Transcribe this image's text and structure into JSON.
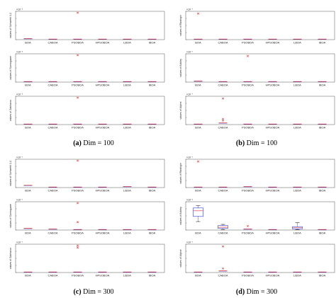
{
  "captions": [
    {
      "letter": "(a)",
      "text": "Dim = 100"
    },
    {
      "letter": "(b)",
      "text": "Dim = 100"
    },
    {
      "letter": "(c)",
      "text": "Dim = 300"
    },
    {
      "letter": "(d)",
      "text": "Dim = 300"
    }
  ],
  "chart_data": [
    {
      "type": "box",
      "panel": "a",
      "categories": [
        "BOA",
        "CABOA",
        "PSOBOA",
        "HPSOBOA",
        "LBOA",
        "IBOA"
      ],
      "subplots": [
        {
          "ylabel": "values of Schwefel 1.2",
          "multiplier": "×10⁻⁸",
          "boxes": [
            {
              "median": 0.04
            },
            {
              "median": 0.02
            },
            {
              "median": 0.02
            },
            {
              "median": 0.02
            },
            {
              "median": 0.02
            },
            {
              "median": 0.02
            }
          ],
          "outliers": [
            [],
            [],
            [
              0.95
            ],
            [],
            [],
            []
          ]
        },
        {
          "ylabel": "values of Sumsquare",
          "multiplier": "×10⁻⁸",
          "boxes": [
            {
              "median": 0.02
            },
            {
              "median": 0.02
            },
            {
              "median": 0.02
            },
            {
              "median": 0.02
            },
            {
              "median": 0.02
            },
            {
              "median": 0.02
            }
          ],
          "outliers": [
            [],
            [],
            [
              0.95
            ],
            [],
            [],
            []
          ]
        },
        {
          "ylabel": "values of Zakharov",
          "multiplier": "×10⁻⁸",
          "boxes": [
            {
              "median": 0.02
            },
            {
              "median": 0.02
            },
            {
              "median": 0.02
            },
            {
              "median": 0.02
            },
            {
              "median": 0.02
            },
            {
              "median": 0.02
            }
          ],
          "outliers": [
            [],
            [],
            [
              0.95
            ],
            [],
            [],
            []
          ]
        }
      ]
    },
    {
      "type": "box",
      "panel": "b",
      "categories": [
        "BOA",
        "CABOA",
        "PSOBOA",
        "HPSOBOA",
        "LBOA",
        "IBOA"
      ],
      "subplots": [
        {
          "ylabel": "values of Rastrigin",
          "multiplier": "×10⁻⁷",
          "boxes": [
            {
              "median": 0.02
            },
            {
              "median": 0.02
            },
            {
              "median": 0.02
            },
            {
              "median": 0.02
            },
            {
              "median": 0.02
            },
            {
              "median": 0.02
            }
          ],
          "outliers": [
            [
              0.92
            ],
            [],
            [],
            [],
            [],
            []
          ]
        },
        {
          "ylabel": "values of Ackley",
          "multiplier": "×10⁻⁷",
          "boxes": [
            {
              "median": 0.04
            },
            {
              "median": 0.02
            },
            {
              "median": 0.02
            },
            {
              "median": 0.02
            },
            {
              "median": 0.02
            },
            {
              "median": 0.02
            }
          ],
          "outliers": [
            [],
            [],
            [
              0.92
            ],
            [],
            [],
            []
          ]
        },
        {
          "ylabel": "values of Alpine",
          "multiplier": "×10⁻⁷",
          "boxes": [
            {
              "median": 0.02
            },
            {
              "median": 0.06
            },
            {
              "median": 0.02
            },
            {
              "median": 0.02
            },
            {
              "median": 0.02
            },
            {
              "median": 0.02
            }
          ],
          "outliers": [
            [],
            [
              0.92,
              0.2,
              0.14
            ],
            [],
            [],
            [],
            []
          ]
        }
      ]
    },
    {
      "type": "box",
      "panel": "c",
      "categories": [
        "BOA",
        "CABOA",
        "PSOBOA",
        "HPSOBOA",
        "LBOA",
        "IBOA"
      ],
      "subplots": [
        {
          "ylabel": "values of Schwefel 1.2",
          "multiplier": "×10⁻⁷",
          "boxes": [
            {
              "median": 0.08
            },
            {
              "median": 0.02
            },
            {
              "median": 0.02
            },
            {
              "median": 0.02
            },
            {
              "median": 0.04
            },
            {
              "median": 0.02
            }
          ],
          "outliers": [
            [],
            [],
            [
              0.95
            ],
            [],
            [],
            []
          ]
        },
        {
          "ylabel": "values of Sumsquare",
          "multiplier": "×10⁻⁷",
          "boxes": [
            {
              "median": 0.06
            },
            {
              "median": 0.04
            },
            {
              "median": 0.02
            },
            {
              "median": 0.02
            },
            {
              "median": 0.02
            },
            {
              "median": 0.02
            }
          ],
          "outliers": [
            [],
            [],
            [
              0.95,
              0.28
            ],
            [],
            [],
            []
          ]
        },
        {
          "ylabel": "values of Zakharov",
          "multiplier": "×10⁻⁷",
          "boxes": [
            {
              "median": 0.02
            },
            {
              "median": 0.02
            },
            {
              "median": 0.02
            },
            {
              "median": 0.02
            },
            {
              "median": 0.02
            },
            {
              "median": 0.02
            }
          ],
          "outliers": [
            [],
            [],
            [
              0.95,
              0.88
            ],
            [],
            [],
            []
          ]
        }
      ]
    },
    {
      "type": "box",
      "panel": "d",
      "categories": [
        "BOA",
        "CABOA",
        "PSOBOA",
        "HPSOBOA",
        "LBOA",
        "IBOA"
      ],
      "subplots": [
        {
          "ylabel": "values of Rastrigin",
          "multiplier": "×10⁻⁷",
          "boxes": [
            {
              "median": 0.02
            },
            {
              "median": 0.02
            },
            {
              "median": 0.04
            },
            {
              "median": 0.02
            },
            {
              "median": 0.02
            },
            {
              "median": 0.02
            }
          ],
          "outliers": [
            [
              0.92
            ],
            [],
            [],
            [],
            [],
            []
          ]
        },
        {
          "ylabel": "values of Ackley",
          "multiplier": "×10⁻⁸",
          "boxes": [
            {
              "whislo": 0.3,
              "q1": 0.48,
              "median": 0.68,
              "q3": 0.78,
              "whishi": 0.86
            },
            {
              "whislo": 0.02,
              "q1": 0.06,
              "median": 0.1,
              "q3": 0.16,
              "whishi": 0.2
            },
            {
              "median": 0.04
            },
            {
              "median": 0.02
            },
            {
              "whislo": 0.02,
              "q1": 0.04,
              "median": 0.08,
              "q3": 0.12,
              "whishi": 0.26
            },
            {
              "median": 0.02
            }
          ],
          "outliers": [
            [],
            [],
            [
              0.14
            ],
            [],
            [],
            []
          ]
        },
        {
          "ylabel": "values of Alpine",
          "multiplier": "×10⁻⁷",
          "boxes": [
            {
              "median": 0.02
            },
            {
              "median": 0.06
            },
            {
              "median": 0.02
            },
            {
              "median": 0.02
            },
            {
              "median": 0.02
            },
            {
              "median": 0.02
            }
          ],
          "outliers": [
            [],
            [
              0.92,
              0.14
            ],
            [],
            [],
            [],
            []
          ]
        }
      ]
    }
  ]
}
